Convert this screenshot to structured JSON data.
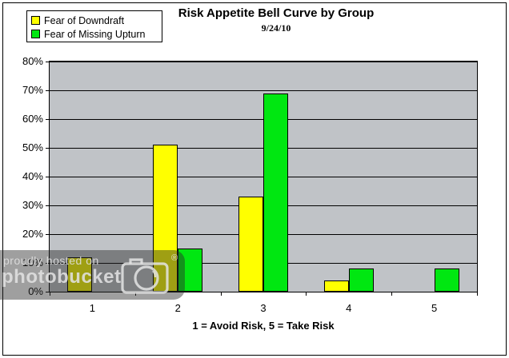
{
  "chart_data": {
    "type": "bar",
    "title": "Risk Appetite Bell Curve by Group",
    "subtitle": "9/24/10",
    "categories": [
      "1",
      "2",
      "3",
      "4",
      "5"
    ],
    "series": [
      {
        "name": "Fear of Downdraft",
        "color": "#ffff00",
        "values": [
          12,
          51,
          33,
          4,
          0
        ]
      },
      {
        "name": "Fear of Missing Upturn",
        "color": "#00e711",
        "values": [
          0,
          15,
          69,
          8,
          8
        ]
      }
    ],
    "xlabel": "1 = Avoid Risk, 5 = Take Risk",
    "ylabel": "",
    "ylim": [
      0,
      80
    ],
    "ytick_step": 10,
    "ytick_format": "percent",
    "grid": true,
    "legend_position": "top-left",
    "plot_bg": "#c0c3c7"
  },
  "watermark": {
    "line1": "proudly hosted on",
    "line2": "photobucket",
    "registered": "®",
    "camera_icon": "camera-icon"
  }
}
